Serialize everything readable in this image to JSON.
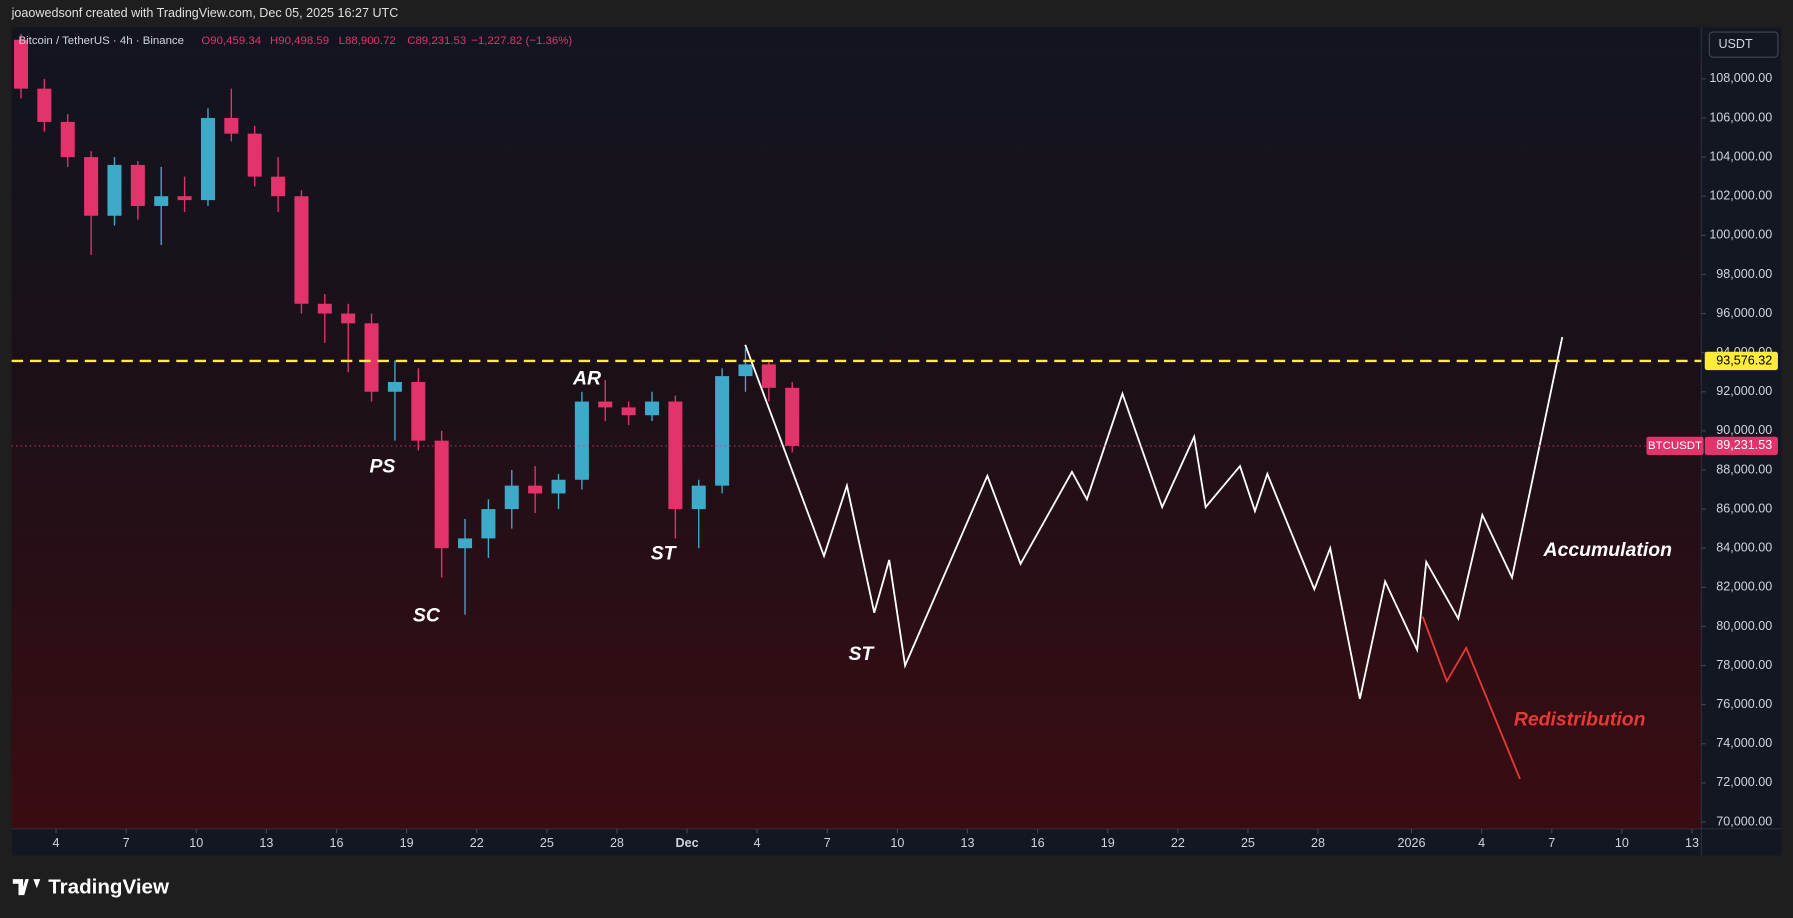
{
  "header": {
    "author_line": "joaowedsonf created with TradingView.com, Dec 05, 2025 16:27 UTC",
    "watermark": "TradingView"
  },
  "chart_data": {
    "type": "candlestick",
    "title": "Bitcoin / TetherUS · 4h · Binance",
    "legend": {
      "open": "O90,459.34",
      "high": "H90,498.59",
      "low": "L88,900.72",
      "close": "C89,231.53",
      "change": "−1,227.82 (−1.36%)"
    },
    "currency": "USDT",
    "up_color": "#3fa9c9",
    "down_color": "#e2336b",
    "x": [
      2.5,
      3.5,
      4.5,
      5.5,
      6.5,
      7.5,
      8.5,
      9.5,
      10.5,
      11.5,
      12.5,
      13.5,
      14.5,
      15.5,
      16.5,
      17.5,
      18.5,
      19.5,
      20.5,
      21.5,
      22.5,
      23.5,
      24.5,
      25.5,
      26.5,
      27.5,
      28.5,
      29.5,
      30.5,
      31.5,
      32.5,
      33.5,
      34.5,
      35.5
    ],
    "open": [
      110000,
      107500,
      105800,
      104000,
      101000,
      103600,
      101500,
      102000,
      101800,
      106000,
      105200,
      103000,
      102000,
      96500,
      96000,
      95500,
      92000,
      92500,
      89500,
      84000,
      84500,
      86000,
      87200,
      86800,
      87500,
      91500,
      91200,
      90800,
      91500,
      86000,
      87200,
      92800,
      93400,
      92200
    ],
    "high": [
      110300,
      108000,
      106200,
      104300,
      104000,
      103800,
      103500,
      103000,
      106500,
      107500,
      105600,
      104000,
      102300,
      97000,
      96500,
      96000,
      93600,
      93200,
      90000,
      85500,
      86500,
      88000,
      88200,
      87800,
      92000,
      92600,
      91500,
      92000,
      91800,
      87500,
      93200,
      94200,
      93600,
      92500
    ],
    "low": [
      107000,
      105300,
      103500,
      99000,
      100500,
      100800,
      99500,
      101200,
      101500,
      104800,
      102500,
      101200,
      96000,
      94500,
      93000,
      91500,
      89500,
      89000,
      82500,
      80600,
      83500,
      85000,
      85800,
      86000,
      87000,
      90500,
      90300,
      90500,
      84500,
      84000,
      86800,
      92000,
      91500,
      88900
    ],
    "close": [
      107500,
      105800,
      104000,
      101000,
      103600,
      101500,
      102000,
      101800,
      106000,
      105200,
      103000,
      102000,
      96500,
      96000,
      95500,
      92000,
      92500,
      89500,
      84000,
      84500,
      86000,
      87200,
      86800,
      87500,
      91500,
      91200,
      90800,
      91500,
      86000,
      87200,
      92800,
      93400,
      92200,
      89231.53
    ],
    "xlim": [
      2.1,
      74.4
    ],
    "xticks": [
      {
        "value": 4,
        "label": "4"
      },
      {
        "value": 7,
        "label": "7"
      },
      {
        "value": 10,
        "label": "10"
      },
      {
        "value": 13,
        "label": "13"
      },
      {
        "value": 16,
        "label": "16"
      },
      {
        "value": 19,
        "label": "19"
      },
      {
        "value": 22,
        "label": "22"
      },
      {
        "value": 25,
        "label": "25"
      },
      {
        "value": 28,
        "label": "28"
      },
      {
        "value": 31,
        "label": "Dec"
      },
      {
        "value": 34,
        "label": "4"
      },
      {
        "value": 37,
        "label": "7"
      },
      {
        "value": 40,
        "label": "10"
      },
      {
        "value": 43,
        "label": "13"
      },
      {
        "value": 46,
        "label": "16"
      },
      {
        "value": 49,
        "label": "19"
      },
      {
        "value": 52,
        "label": "22"
      },
      {
        "value": 55,
        "label": "25"
      },
      {
        "value": 58,
        "label": "28"
      },
      {
        "value": 62,
        "label": "2026"
      },
      {
        "value": 65,
        "label": "4"
      },
      {
        "value": 68,
        "label": "7"
      },
      {
        "value": 71,
        "label": "10"
      },
      {
        "value": 74,
        "label": "13"
      }
    ],
    "ylim": [
      69650,
      110630
    ],
    "yticks": [
      {
        "value": 70000,
        "label": "70,000.00"
      },
      {
        "value": 72000,
        "label": "72,000.00"
      },
      {
        "value": 74000,
        "label": "74,000.00"
      },
      {
        "value": 76000,
        "label": "76,000.00"
      },
      {
        "value": 78000,
        "label": "78,000.00"
      },
      {
        "value": 80000,
        "label": "80,000.00"
      },
      {
        "value": 82000,
        "label": "82,000.00"
      },
      {
        "value": 84000,
        "label": "84,000.00"
      },
      {
        "value": 86000,
        "label": "86,000.00"
      },
      {
        "value": 88000,
        "label": "88,000.00"
      },
      {
        "value": 90000,
        "label": "90,000.00"
      },
      {
        "value": 92000,
        "label": "92,000.00"
      },
      {
        "value": 94000,
        "label": "94,000.00"
      },
      {
        "value": 96000,
        "label": "96,000.00"
      },
      {
        "value": 98000,
        "label": "98,000.00"
      },
      {
        "value": 100000,
        "label": "100,000.00"
      },
      {
        "value": 102000,
        "label": "102,000.00"
      },
      {
        "value": 104000,
        "label": "104,000.00"
      },
      {
        "value": 106000,
        "label": "106,000.00"
      },
      {
        "value": 108000,
        "label": "108,000.00"
      }
    ],
    "lines": [
      {
        "color": "#ffffff",
        "x": [
          33.49,
          36.86,
          37.84,
          39.01,
          39.65,
          40.33,
          43.85,
          45.27,
          47.47,
          48.11,
          49.63,
          51.33,
          52.7,
          53.19,
          54.66,
          55.3,
          55.83,
          57.84,
          58.52,
          59.79,
          60.87,
          62.24,
          62.63,
          64.0,
          65.03,
          66.3,
          68.45
        ],
        "values": [
          94400,
          83600,
          87200,
          80700,
          83400,
          78000,
          87700,
          83200,
          87900,
          86500,
          91900,
          86100,
          89700,
          86100,
          88200,
          85900,
          87800,
          81900,
          84000,
          76300,
          82300,
          78800,
          83300,
          80400,
          85700,
          82500,
          94800
        ]
      },
      {
        "color": "#e53935",
        "x": [
          62.48,
          63.51,
          64.34,
          66.64
        ],
        "values": [
          80500,
          77200,
          78900,
          72200
        ]
      }
    ],
    "levels": [
      {
        "value": 93576.32,
        "label": "93,576.32",
        "color": "#ffeb3b",
        "style": "dashed"
      },
      {
        "value": 89231.53,
        "label": "89,231.53",
        "name": "BTCUSDT",
        "color": "#e2336b",
        "style": "dotted"
      }
    ],
    "annotations": [
      {
        "text": "PS",
        "color": "#ffffff"
      },
      {
        "text": "SC",
        "color": "#ffffff"
      },
      {
        "text": "AR",
        "color": "#ffffff"
      },
      {
        "text": "ST",
        "color": "#ffffff"
      },
      {
        "text": "ST",
        "color": "#ffffff"
      },
      {
        "text": "Accumulation",
        "color": "#ffffff"
      },
      {
        "text": "Redistribution",
        "color": "#e53935"
      }
    ]
  }
}
